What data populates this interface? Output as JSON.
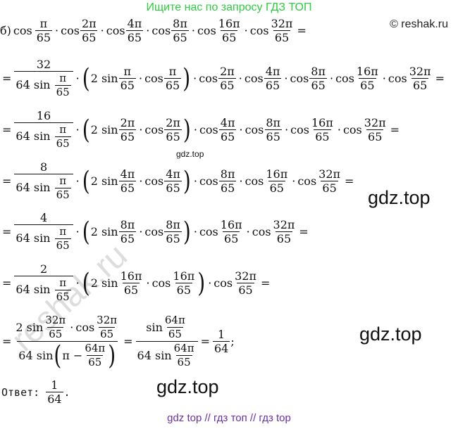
{
  "header": {
    "banner": "Ищите нас по запросу ГДЗ ТОП",
    "site": "© reshak.ru"
  },
  "watermarks": {
    "gdz_small": "gdz.top",
    "gdz_big": "gdz.top",
    "reshak": "reshak.ru"
  },
  "math": {
    "label": "б)",
    "cos": "cos",
    "sin": "sin",
    "two_sin": "2 sin",
    "dot": "·",
    "eq": "=",
    "semicolon": ";",
    "lparen": "(",
    "rparen": ")",
    "pi65": [
      "π",
      "65"
    ],
    "a2": [
      "2π",
      "65"
    ],
    "a4": [
      "4π",
      "65"
    ],
    "a8": [
      "8π",
      "65"
    ],
    "a16": [
      "16π",
      "65"
    ],
    "a32": [
      "32π",
      "65"
    ],
    "a64": [
      "64π",
      "65"
    ],
    "coef32": "32",
    "coef16": "16",
    "coef8": "8",
    "coef4": "4",
    "coef2": "2",
    "den_prefix": "64 sin",
    "pi_minus": "π −",
    "one": "1",
    "sixty_four": "64"
  },
  "answer": {
    "label": "Ответ:",
    "num": "1",
    "den": "64",
    "end": "."
  },
  "footer": {
    "text": "gdz top  //  гдз топ  //  гдз top"
  }
}
